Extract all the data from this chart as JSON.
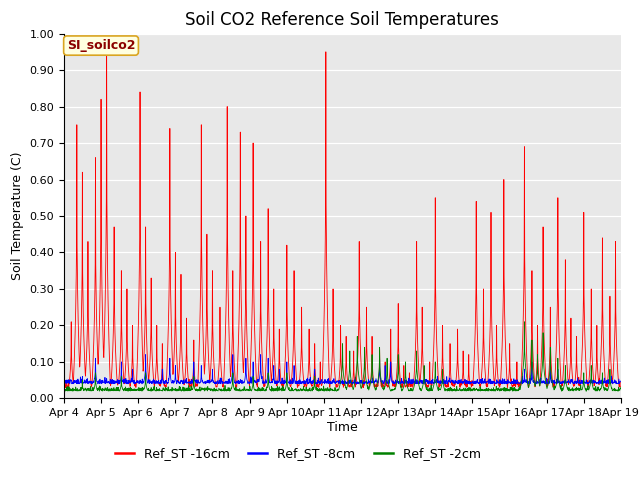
{
  "title": "Soil CO2 Reference Soil Temperatures",
  "xlabel": "Time",
  "ylabel": "Soil Temperature (C)",
  "ylim": [
    0.0,
    1.0
  ],
  "yticks": [
    0.0,
    0.1,
    0.2,
    0.3,
    0.4,
    0.5,
    0.6,
    0.7,
    0.8,
    0.9,
    1.0
  ],
  "ytick_labels": [
    "0.00",
    "0.10",
    "0.20",
    "0.30",
    "0.40",
    "0.50",
    "0.60",
    "0.70",
    "0.80",
    "0.90",
    "1.00"
  ],
  "date_labels": [
    "Apr 4",
    "Apr 5",
    "Apr 6",
    "Apr 7",
    "Apr 8",
    "Apr 9",
    "Apr 10",
    "Apr 11",
    "Apr 12",
    "Apr 13",
    "Apr 14",
    "Apr 15",
    "Apr 16",
    "Apr 17",
    "Apr 18",
    "Apr 19"
  ],
  "series_colors": [
    "red",
    "blue",
    "green"
  ],
  "series_labels": [
    "Ref_ST -16cm",
    "Ref_ST -8cm",
    "Ref_ST -2cm"
  ],
  "legend_label": "SI_soilco2",
  "plot_bg": "#e8e8e8",
  "title_fontsize": 12,
  "axis_label_fontsize": 9,
  "tick_fontsize": 8,
  "n_points": 2000
}
